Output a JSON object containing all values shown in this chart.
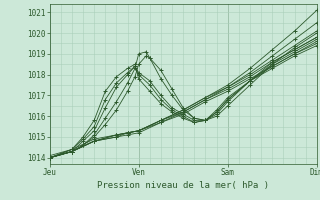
{
  "title": "Pression niveau de la mer( hPa )",
  "background_color": "#cce8d8",
  "plot_bg_color": "#cce8d8",
  "line_color": "#2d5a2d",
  "grid_color": "#aacfba",
  "tick_color": "#2d5a2d",
  "label_color": "#2d5a2d",
  "ylim": [
    1013.7,
    1021.4
  ],
  "yticks": [
    1014,
    1015,
    1016,
    1017,
    1018,
    1019,
    1020,
    1021
  ],
  "xlim": [
    0,
    72
  ],
  "xtick_positions": [
    0,
    24,
    48,
    72
  ],
  "xtick_labels": [
    "Jeu",
    "Ven",
    "Sam",
    "Dim"
  ],
  "series": [
    [
      0,
      1014.1,
      6,
      1014.4,
      12,
      1014.9,
      18,
      1015.1,
      21,
      1015.2,
      24,
      1015.3,
      30,
      1015.8,
      36,
      1016.3,
      42,
      1016.9,
      48,
      1017.5,
      54,
      1018.3,
      60,
      1019.2,
      66,
      1020.1,
      72,
      1021.1
    ],
    [
      0,
      1014.0,
      6,
      1014.3,
      12,
      1014.8,
      18,
      1015.0,
      21,
      1015.1,
      24,
      1015.2,
      30,
      1015.7,
      36,
      1016.2,
      42,
      1016.8,
      48,
      1017.4,
      54,
      1018.1,
      60,
      1018.9,
      66,
      1019.7,
      72,
      1020.5
    ],
    [
      0,
      1014.0,
      6,
      1014.3,
      12,
      1014.8,
      18,
      1015.1,
      21,
      1015.2,
      24,
      1015.3,
      30,
      1015.8,
      36,
      1016.3,
      42,
      1016.9,
      48,
      1017.4,
      54,
      1018.0,
      60,
      1018.7,
      66,
      1019.4,
      72,
      1020.1
    ],
    [
      0,
      1014.0,
      6,
      1014.3,
      12,
      1014.8,
      18,
      1015.1,
      21,
      1015.2,
      24,
      1015.3,
      30,
      1015.8,
      36,
      1016.2,
      42,
      1016.8,
      48,
      1017.3,
      54,
      1017.9,
      60,
      1018.6,
      66,
      1019.2,
      72,
      1019.8
    ],
    [
      0,
      1014.0,
      6,
      1014.3,
      12,
      1014.8,
      18,
      1015.0,
      21,
      1015.2,
      24,
      1015.3,
      30,
      1015.7,
      36,
      1016.1,
      42,
      1016.7,
      48,
      1017.2,
      54,
      1017.8,
      60,
      1018.4,
      66,
      1019.0,
      72,
      1019.5
    ],
    [
      0,
      1014.0,
      6,
      1014.3,
      9,
      1014.6,
      12,
      1015.0,
      15,
      1015.6,
      18,
      1016.3,
      21,
      1017.2,
      23,
      1017.9,
      24,
      1018.5,
      26,
      1018.9,
      27,
      1018.8,
      30,
      1018.2,
      33,
      1017.3,
      36,
      1016.4,
      39,
      1015.9,
      42,
      1015.8,
      45,
      1016.0,
      48,
      1016.5,
      54,
      1017.5,
      60,
      1018.5,
      66,
      1019.3,
      72,
      1020.0
    ],
    [
      0,
      1014.0,
      6,
      1014.3,
      9,
      1014.6,
      12,
      1015.1,
      15,
      1015.9,
      18,
      1016.7,
      21,
      1017.6,
      23,
      1018.3,
      24,
      1019.0,
      26,
      1019.1,
      27,
      1018.8,
      30,
      1017.8,
      33,
      1017.0,
      36,
      1016.3,
      39,
      1015.9,
      42,
      1015.8,
      45,
      1016.1,
      48,
      1016.7,
      54,
      1017.7,
      60,
      1018.6,
      66,
      1019.2,
      72,
      1019.8
    ],
    [
      0,
      1014.0,
      6,
      1014.3,
      9,
      1014.8,
      12,
      1015.3,
      15,
      1016.4,
      18,
      1017.4,
      21,
      1018.0,
      23,
      1018.4,
      24,
      1018.1,
      27,
      1017.7,
      30,
      1017.0,
      33,
      1016.4,
      36,
      1016.1,
      39,
      1015.8,
      42,
      1015.8,
      45,
      1016.2,
      48,
      1016.8,
      54,
      1017.7,
      60,
      1018.5,
      66,
      1019.1,
      72,
      1019.7
    ],
    [
      0,
      1014.0,
      6,
      1014.4,
      9,
      1014.9,
      12,
      1015.5,
      15,
      1016.8,
      18,
      1017.6,
      21,
      1018.1,
      23,
      1018.4,
      24,
      1018.0,
      27,
      1017.5,
      30,
      1016.8,
      33,
      1016.3,
      36,
      1016.0,
      39,
      1015.7,
      42,
      1015.8,
      45,
      1016.2,
      48,
      1016.8,
      54,
      1017.7,
      60,
      1018.4,
      66,
      1019.0,
      72,
      1019.6
    ],
    [
      0,
      1014.0,
      6,
      1014.4,
      9,
      1015.0,
      12,
      1015.8,
      15,
      1017.2,
      18,
      1017.9,
      21,
      1018.3,
      23,
      1018.5,
      24,
      1017.8,
      27,
      1017.2,
      30,
      1016.6,
      33,
      1016.2,
      36,
      1015.9,
      39,
      1015.7,
      42,
      1015.8,
      45,
      1016.3,
      48,
      1016.9,
      54,
      1017.7,
      60,
      1018.3,
      66,
      1018.9,
      72,
      1019.4
    ]
  ]
}
